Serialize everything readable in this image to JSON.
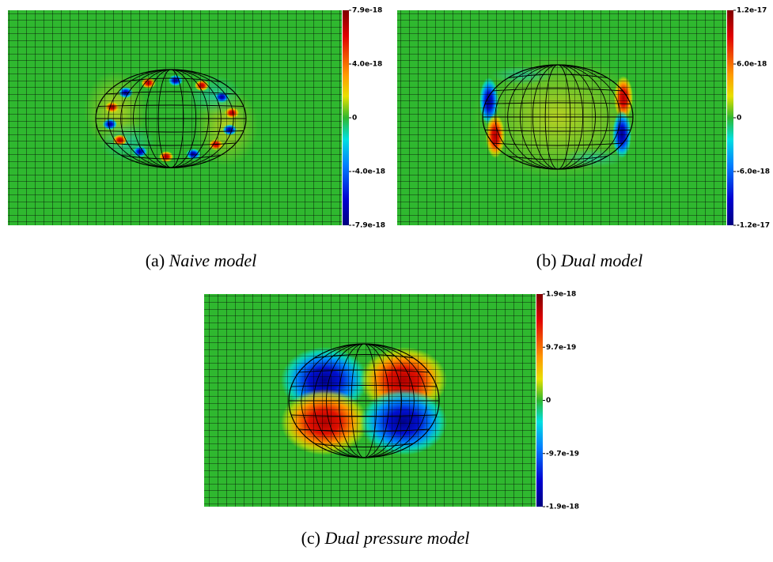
{
  "panels": [
    {
      "label": "(a)",
      "caption": "Naive model",
      "colorbar": [
        "7.9e-18",
        "4.0e-18",
        "0",
        "-4.0e-18",
        "-7.9e-18"
      ]
    },
    {
      "label": "(b)",
      "caption": "Dual model",
      "colorbar": [
        "1.2e-17",
        "6.0e-18",
        "0",
        "-6.0e-18",
        "-1.2e-17"
      ]
    },
    {
      "label": "(c)",
      "caption": "Dual pressure model",
      "colorbar": [
        "1.9e-18",
        "9.7e-19",
        "0",
        "-9.7e-19",
        "-1.9e-18"
      ]
    }
  ]
}
